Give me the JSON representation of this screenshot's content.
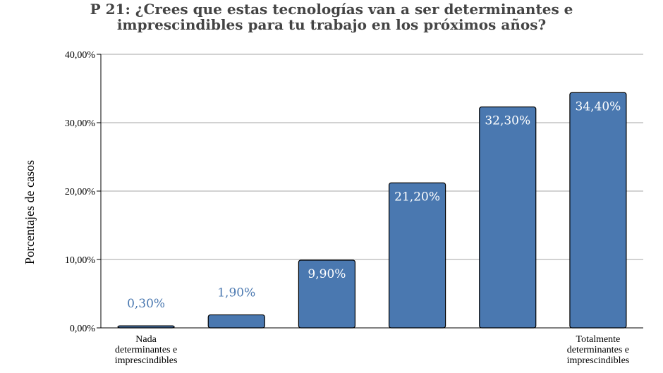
{
  "chart_data": {
    "type": "bar",
    "title_lines": [
      "P 21: ¿Crees que estas tecnologías van a ser determinantes e",
      "imprescindibles para tu trabajo en los próximos años?"
    ],
    "ylabel": "Porcentajes de casos",
    "ylim": [
      0,
      40
    ],
    "yticks": [
      0,
      10,
      20,
      30,
      40
    ],
    "ytick_labels": [
      "0,00%",
      "10,00%",
      "20,00%",
      "30,00%",
      "40,00%"
    ],
    "grid": true,
    "categories": [
      "1",
      "2",
      "3",
      "4",
      "5",
      "6"
    ],
    "category_labels": [
      [
        "Nada",
        "determinantes e",
        "imprescindibles"
      ],
      [],
      [],
      [],
      [],
      [
        "Totalmente",
        "determinantes e",
        "imprescindibles"
      ]
    ],
    "values": [
      0.3,
      1.9,
      9.9,
      21.2,
      32.3,
      34.4
    ],
    "value_labels": [
      "0,30%",
      "1,90%",
      "9,90%",
      "21,20%",
      "32,30%",
      "34,40%"
    ],
    "bar_color": "#4a78b0",
    "label_inside_color": "#ffffff",
    "label_outside_color": "#4a78b0"
  }
}
